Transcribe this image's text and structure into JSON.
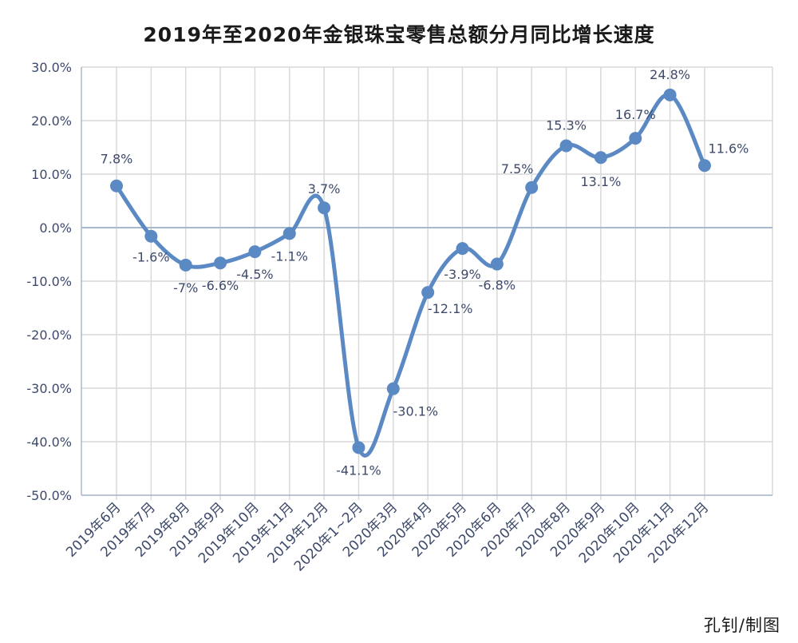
{
  "chart_data": {
    "type": "line",
    "title": "2019年至2020年金银珠宝零售总额分月同比增长速度",
    "xlabel": "",
    "ylabel": "",
    "ylim": [
      -50,
      30
    ],
    "ytick_step": 10,
    "ytick_labels": [
      "30.0%",
      "20.0%",
      "10.0%",
      "0.0%",
      "-10.0%",
      "-20.0%",
      "-30.0%",
      "-40.0%",
      "-50.0%"
    ],
    "grid": true,
    "legend": "none",
    "categories": [
      "2019年6月",
      "2019年7月",
      "2019年8月",
      "2019年9月",
      "2019年10月",
      "2019年11月",
      "2019年12月",
      "2020年1~2月",
      "2020年3月",
      "2020年4月",
      "2020年5月",
      "2020年6月",
      "2020年7月",
      "2020年8月",
      "2020年9月",
      "2020年10月",
      "2020年11月",
      "2020年12月"
    ],
    "series": [
      {
        "values": [
          7.8,
          -1.6,
          -7,
          -6.6,
          -4.5,
          -1.1,
          3.7,
          -41.1,
          -30.1,
          -12.1,
          -3.9,
          -6.8,
          7.5,
          15.3,
          13.1,
          16.7,
          24.8,
          11.6
        ],
        "data_labels": [
          "7.8%",
          "-1.6%",
          "-7%",
          "-6.6%",
          "-4.5%",
          "-1.1%",
          "3.7%",
          "-41.1%",
          "-30.1%",
          "-12.1%",
          "-3.9%",
          "-6.8%",
          "7.5%",
          "15.3%",
          "13.1%",
          "16.7%",
          "24.8%",
          "11.6%"
        ],
        "color": "#5b89c4"
      }
    ]
  },
  "credit": "孔钊/制图",
  "colors": {
    "line": "#5b89c4",
    "grid": "#d9d9d9",
    "axis": "#a8b8cc",
    "tick_text": "#3e4a6b",
    "label_text": "#3e4a6b"
  }
}
